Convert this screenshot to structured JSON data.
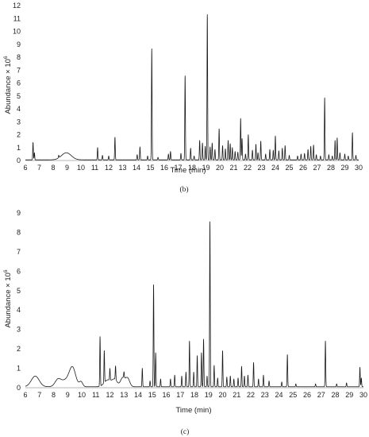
{
  "chart_data": [
    {
      "type": "line",
      "panel_label": "(b)",
      "xlabel": "Time (min)",
      "ylabel_base": "Abundance × 10",
      "ylabel_exp": "6",
      "xlim": [
        6,
        30
      ],
      "ylim": [
        0,
        12
      ],
      "xticks": [
        6,
        7,
        8,
        9,
        10,
        11,
        12,
        13,
        14,
        15,
        16,
        17,
        18,
        19,
        20,
        21,
        22,
        23,
        24,
        25,
        26,
        27,
        28,
        29,
        30
      ],
      "yticks": [
        0,
        1,
        2,
        3,
        4,
        5,
        6,
        7,
        8,
        9,
        10,
        11,
        12
      ],
      "baseline": 0.05,
      "humps": [
        {
          "x": 8.95,
          "h": 0.55,
          "w": 0.35
        }
      ],
      "peaks": [
        {
          "x": 6.55,
          "y": 1.4
        },
        {
          "x": 6.65,
          "y": 0.6
        },
        {
          "x": 8.4,
          "y": 0.25
        },
        {
          "x": 11.2,
          "y": 1.0
        },
        {
          "x": 11.55,
          "y": 0.4
        },
        {
          "x": 12.0,
          "y": 0.35
        },
        {
          "x": 12.45,
          "y": 1.8
        },
        {
          "x": 14.05,
          "y": 0.45
        },
        {
          "x": 14.25,
          "y": 1.05
        },
        {
          "x": 14.8,
          "y": 0.35
        },
        {
          "x": 15.1,
          "y": 8.65
        },
        {
          "x": 15.55,
          "y": 0.25
        },
        {
          "x": 16.3,
          "y": 0.5
        },
        {
          "x": 16.45,
          "y": 0.7
        },
        {
          "x": 17.2,
          "y": 0.55
        },
        {
          "x": 17.5,
          "y": 6.55
        },
        {
          "x": 17.9,
          "y": 0.95
        },
        {
          "x": 18.15,
          "y": 0.35
        },
        {
          "x": 18.55,
          "y": 1.55
        },
        {
          "x": 18.75,
          "y": 1.35
        },
        {
          "x": 18.95,
          "y": 1.1
        },
        {
          "x": 19.1,
          "y": 11.3
        },
        {
          "x": 19.3,
          "y": 1.05
        },
        {
          "x": 19.45,
          "y": 1.35
        },
        {
          "x": 19.65,
          "y": 0.85
        },
        {
          "x": 19.95,
          "y": 2.45
        },
        {
          "x": 20.2,
          "y": 1.15
        },
        {
          "x": 20.4,
          "y": 0.9
        },
        {
          "x": 20.6,
          "y": 1.55
        },
        {
          "x": 20.75,
          "y": 1.3
        },
        {
          "x": 20.9,
          "y": 1.0
        },
        {
          "x": 21.1,
          "y": 0.7
        },
        {
          "x": 21.3,
          "y": 0.65
        },
        {
          "x": 21.5,
          "y": 3.25
        },
        {
          "x": 21.6,
          "y": 1.7
        },
        {
          "x": 21.85,
          "y": 0.5
        },
        {
          "x": 22.05,
          "y": 2.0
        },
        {
          "x": 22.35,
          "y": 0.8
        },
        {
          "x": 22.6,
          "y": 1.25
        },
        {
          "x": 22.75,
          "y": 0.6
        },
        {
          "x": 22.95,
          "y": 1.5
        },
        {
          "x": 23.3,
          "y": 0.5
        },
        {
          "x": 23.6,
          "y": 0.85
        },
        {
          "x": 23.85,
          "y": 0.8
        },
        {
          "x": 24.0,
          "y": 1.9
        },
        {
          "x": 24.25,
          "y": 0.75
        },
        {
          "x": 24.5,
          "y": 0.95
        },
        {
          "x": 24.7,
          "y": 1.15
        },
        {
          "x": 25.0,
          "y": 0.4
        },
        {
          "x": 25.6,
          "y": 0.35
        },
        {
          "x": 25.85,
          "y": 0.5
        },
        {
          "x": 26.1,
          "y": 0.55
        },
        {
          "x": 26.35,
          "y": 0.85
        },
        {
          "x": 26.55,
          "y": 1.1
        },
        {
          "x": 26.75,
          "y": 1.2
        },
        {
          "x": 26.95,
          "y": 0.45
        },
        {
          "x": 27.25,
          "y": 0.35
        },
        {
          "x": 27.55,
          "y": 4.85
        },
        {
          "x": 27.85,
          "y": 0.45
        },
        {
          "x": 28.1,
          "y": 0.35
        },
        {
          "x": 28.3,
          "y": 1.55
        },
        {
          "x": 28.45,
          "y": 1.75
        },
        {
          "x": 28.65,
          "y": 0.6
        },
        {
          "x": 29.0,
          "y": 0.5
        },
        {
          "x": 29.25,
          "y": 0.35
        },
        {
          "x": 29.55,
          "y": 2.15
        },
        {
          "x": 29.8,
          "y": 0.4
        }
      ]
    },
    {
      "type": "line",
      "panel_label": "(c)",
      "xlabel": "Time (min)",
      "ylabel_base": "Abundance × 10",
      "ylabel_exp": "6",
      "xlim": [
        6,
        30
      ],
      "ylim": [
        0,
        9
      ],
      "xticks": [
        6,
        7,
        8,
        9,
        10,
        11,
        12,
        13,
        14,
        15,
        16,
        17,
        18,
        19,
        20,
        21,
        22,
        23,
        24,
        25,
        26,
        27,
        28,
        29,
        30
      ],
      "yticks": [
        0,
        1,
        2,
        3,
        4,
        5,
        6,
        7,
        8,
        9
      ],
      "baseline": 0.05,
      "humps": [
        {
          "x": 6.7,
          "h": 0.55,
          "w": 0.28
        },
        {
          "x": 8.3,
          "h": 0.3,
          "w": 0.2
        },
        {
          "x": 8.9,
          "h": 0.35,
          "w": 0.4
        },
        {
          "x": 9.35,
          "h": 0.85,
          "w": 0.22
        },
        {
          "x": 9.95,
          "h": 0.25,
          "w": 0.12
        },
        {
          "x": 11.85,
          "h": 0.35,
          "w": 0.25
        },
        {
          "x": 12.35,
          "h": 0.35,
          "w": 0.18
        },
        {
          "x": 12.9,
          "h": 0.45,
          "w": 0.15
        },
        {
          "x": 13.25,
          "h": 0.45,
          "w": 0.15
        }
      ],
      "peaks": [
        {
          "x": 11.3,
          "y": 2.6
        },
        {
          "x": 11.6,
          "y": 1.7
        },
        {
          "x": 12.0,
          "y": 0.65
        },
        {
          "x": 12.4,
          "y": 0.75
        },
        {
          "x": 13.0,
          "y": 0.35
        },
        {
          "x": 14.3,
          "y": 1.0
        },
        {
          "x": 14.85,
          "y": 0.35
        },
        {
          "x": 15.1,
          "y": 5.3
        },
        {
          "x": 15.25,
          "y": 1.8
        },
        {
          "x": 15.6,
          "y": 0.45
        },
        {
          "x": 16.3,
          "y": 0.45
        },
        {
          "x": 16.6,
          "y": 0.65
        },
        {
          "x": 17.1,
          "y": 0.6
        },
        {
          "x": 17.4,
          "y": 0.8
        },
        {
          "x": 17.65,
          "y": 2.4
        },
        {
          "x": 17.95,
          "y": 0.8
        },
        {
          "x": 18.2,
          "y": 1.65
        },
        {
          "x": 18.5,
          "y": 1.8
        },
        {
          "x": 18.65,
          "y": 2.5
        },
        {
          "x": 18.9,
          "y": 0.6
        },
        {
          "x": 19.1,
          "y": 8.55
        },
        {
          "x": 19.4,
          "y": 1.15
        },
        {
          "x": 19.65,
          "y": 0.5
        },
        {
          "x": 20.0,
          "y": 1.9
        },
        {
          "x": 20.3,
          "y": 0.55
        },
        {
          "x": 20.55,
          "y": 0.6
        },
        {
          "x": 20.8,
          "y": 0.45
        },
        {
          "x": 21.1,
          "y": 0.5
        },
        {
          "x": 21.35,
          "y": 1.1
        },
        {
          "x": 21.55,
          "y": 0.6
        },
        {
          "x": 21.8,
          "y": 0.65
        },
        {
          "x": 22.2,
          "y": 1.3
        },
        {
          "x": 22.55,
          "y": 0.45
        },
        {
          "x": 22.9,
          "y": 0.65
        },
        {
          "x": 23.3,
          "y": 0.35
        },
        {
          "x": 24.2,
          "y": 0.3
        },
        {
          "x": 24.6,
          "y": 1.7
        },
        {
          "x": 25.2,
          "y": 0.2
        },
        {
          "x": 26.6,
          "y": 0.2
        },
        {
          "x": 27.3,
          "y": 2.4
        },
        {
          "x": 28.1,
          "y": 0.2
        },
        {
          "x": 28.8,
          "y": 0.25
        },
        {
          "x": 29.75,
          "y": 1.05
        },
        {
          "x": 29.85,
          "y": 0.5
        }
      ]
    }
  ]
}
